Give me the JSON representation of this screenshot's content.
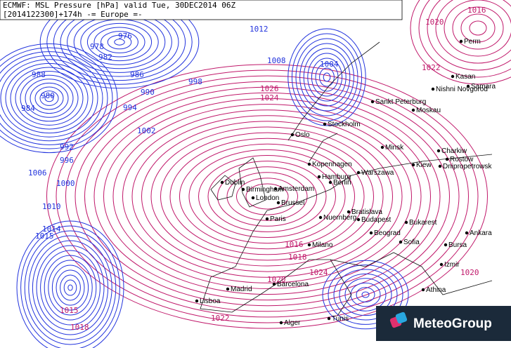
{
  "header": {
    "line1": "ECMWF: MSL Pressure [hPa] valid Tue, 30DEC2014 06Z",
    "line2": "[2014122300]+174h -= Europe =-"
  },
  "logo": "MeteoGroup",
  "cities": [
    "Perm",
    "Kasan",
    "Nishni Novgorod",
    "Samara",
    "Sankt Peterburg",
    "Moskau",
    "Stockholm",
    "Oslo",
    "Minsk",
    "Charkiw",
    "Rostow",
    "Kiew",
    "Dnipropetrowsk",
    "Kopenhagen",
    "Warszawa",
    "Hamburg",
    "Berlin",
    "Dublin",
    "Birmingham",
    "Amsterdam",
    "London",
    "Brussel",
    "Paris",
    "Nuernberg",
    "Bratislava",
    "Budapest",
    "Bukarest",
    "Milano",
    "Beograd",
    "Sofia",
    "Bursa",
    "Ankara",
    "Izmir",
    "Madrid",
    "Barcelona",
    "Lisboa",
    "Athina",
    "Tunis",
    "Alger"
  ],
  "isobar_labels": {
    "blue": [
      1012,
      1008,
      1004,
      1000,
      996,
      992,
      988,
      984,
      980,
      976,
      978,
      982,
      986,
      990,
      994,
      998,
      1002,
      1006,
      1010,
      1014,
      1015
    ],
    "red": [
      1016,
      1020,
      1022,
      1024,
      1026,
      1018,
      1015,
      1020,
      1022,
      1016,
      1024,
      1018,
      1020
    ]
  }
}
